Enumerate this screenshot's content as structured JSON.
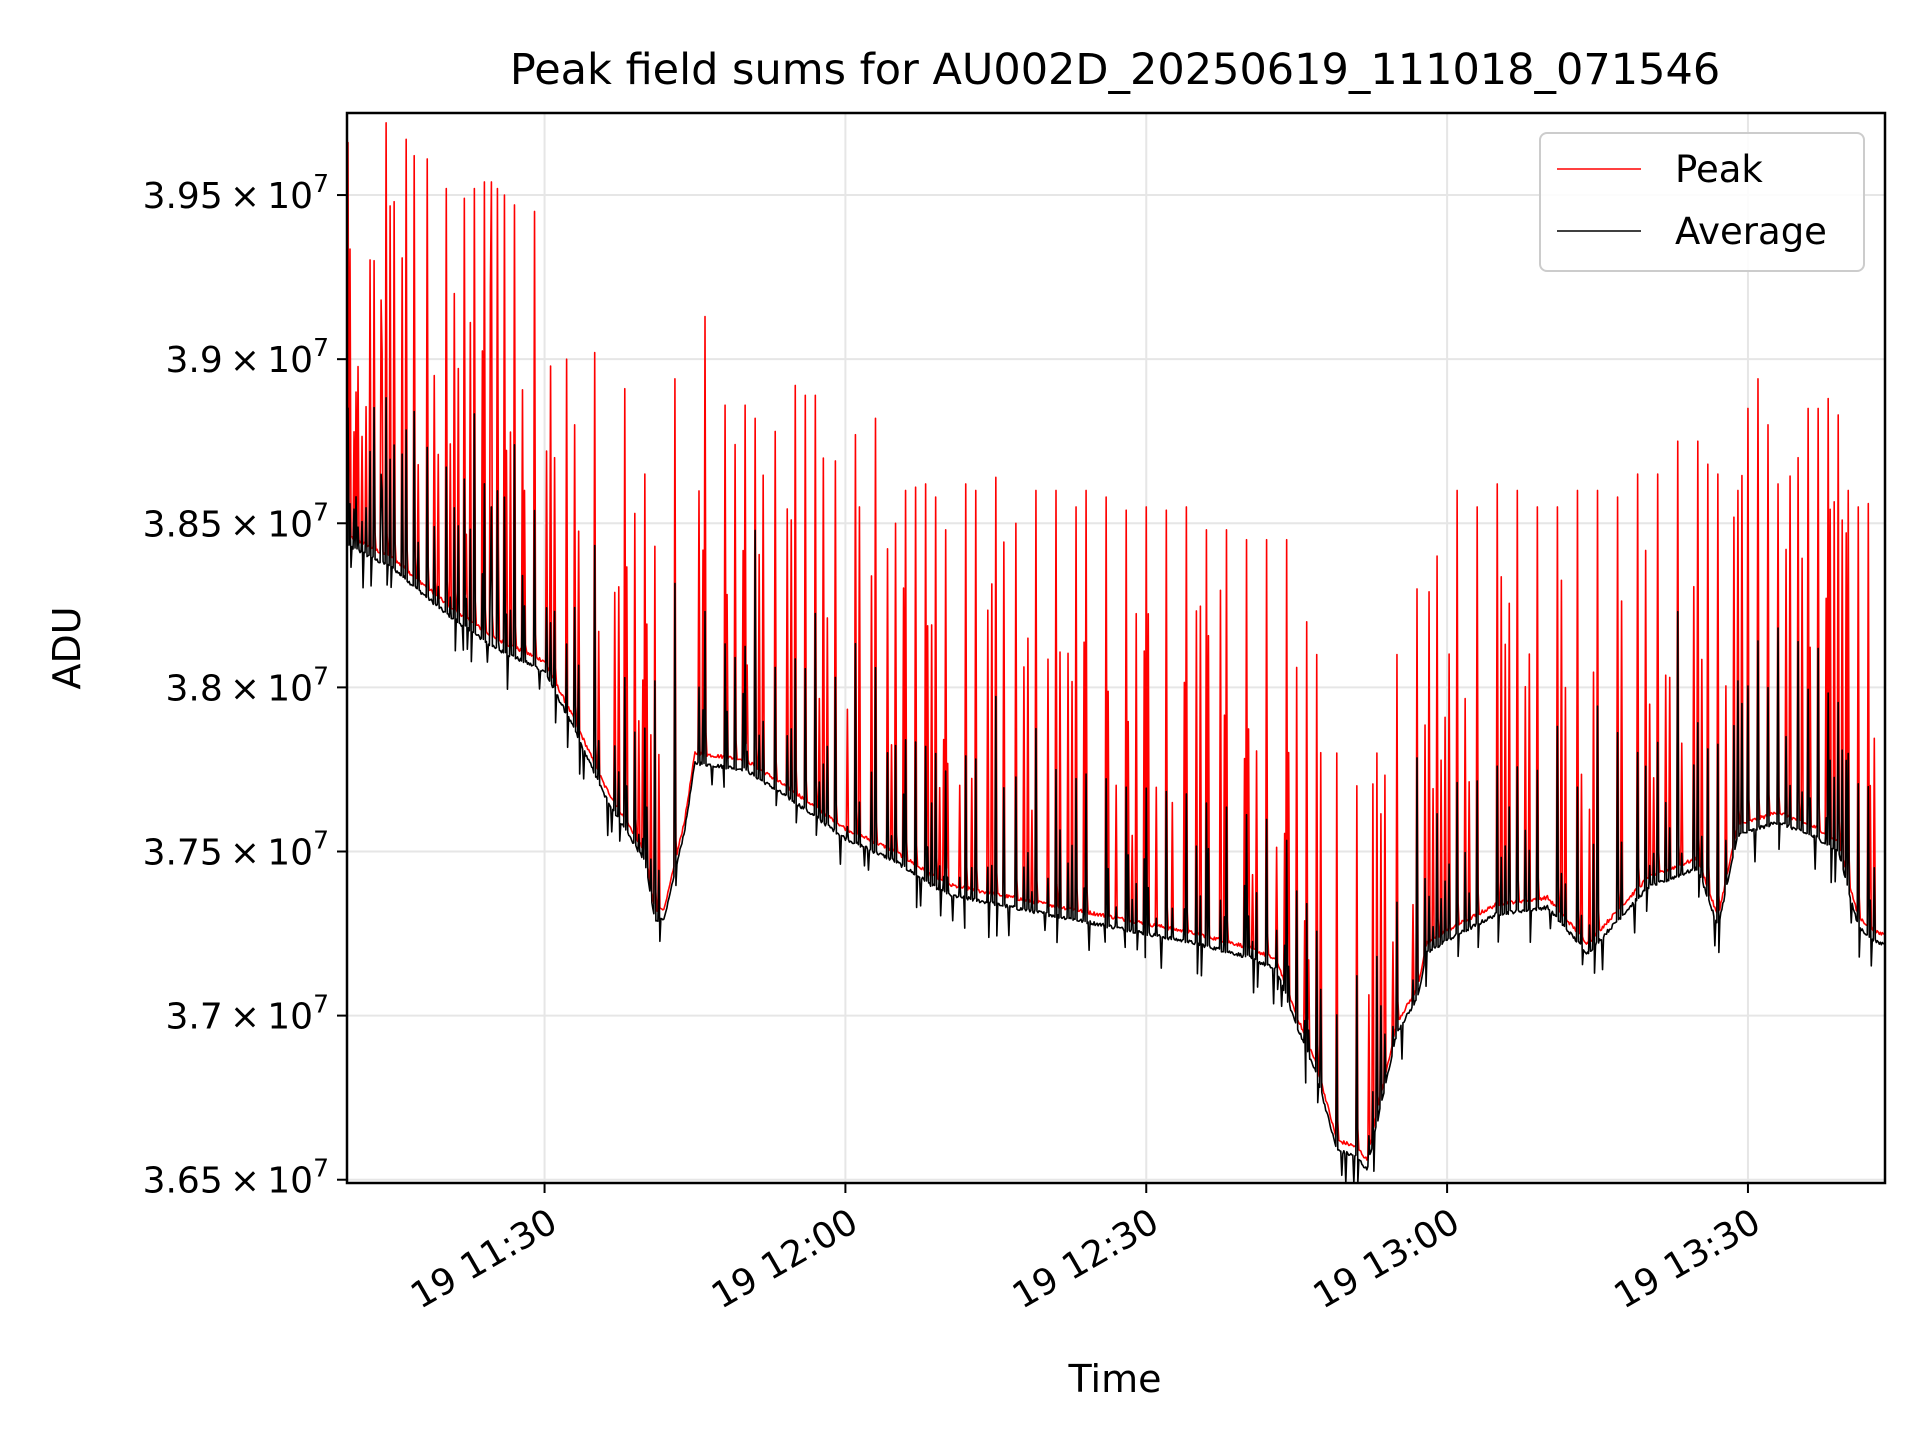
{
  "chart_data": {
    "type": "line",
    "title": "Peak field sums for AU002D_20250619_111018_071546",
    "xlabel": "Time",
    "ylabel": "ADU",
    "xlim_minutes": [
      "11:10:18",
      "13:43:40"
    ],
    "ylim": [
      36490000,
      39750000
    ],
    "grid": true,
    "legend_position": "top-right",
    "x_ticks": [
      "19 11:30",
      "19 12:00",
      "19 12:30",
      "19 13:00",
      "19 13:30"
    ],
    "y_ticks": [
      {
        "mantissa": "3.65",
        "exp": "7",
        "value": 36500000
      },
      {
        "mantissa": "3.7",
        "exp": "7",
        "value": 37000000
      },
      {
        "mantissa": "3.75",
        "exp": "7",
        "value": 37500000
      },
      {
        "mantissa": "3.8",
        "exp": "7",
        "value": 38000000
      },
      {
        "mantissa": "3.85",
        "exp": "7",
        "value": 38500000
      },
      {
        "mantissa": "3.9",
        "exp": "7",
        "value": 39000000
      },
      {
        "mantissa": "3.95",
        "exp": "7",
        "value": 39500000
      }
    ],
    "series": [
      {
        "name": "Peak",
        "color": "#ff0000",
        "baseline": [
          [
            "11:10",
            38470000
          ],
          [
            "11:15",
            38390000
          ],
          [
            "11:20",
            38260000
          ],
          [
            "11:25",
            38150000
          ],
          [
            "11:30",
            38080000
          ],
          [
            "11:33",
            37900000
          ],
          [
            "11:36",
            37700000
          ],
          [
            "11:40",
            37500000
          ],
          [
            "11:41",
            37320000
          ],
          [
            "11:42",
            37330000
          ],
          [
            "11:44",
            37600000
          ],
          [
            "11:45",
            37800000
          ],
          [
            "11:50",
            37780000
          ],
          [
            "11:55",
            37680000
          ],
          [
            "12:00",
            37570000
          ],
          [
            "12:05",
            37500000
          ],
          [
            "12:10",
            37400000
          ],
          [
            "12:15",
            37370000
          ],
          [
            "12:20",
            37340000
          ],
          [
            "12:25",
            37310000
          ],
          [
            "12:30",
            37280000
          ],
          [
            "12:35",
            37250000
          ],
          [
            "12:40",
            37210000
          ],
          [
            "12:43",
            37170000
          ],
          [
            "12:45",
            37000000
          ],
          [
            "12:47",
            36850000
          ],
          [
            "12:49",
            36620000
          ],
          [
            "12:51",
            36600000
          ],
          [
            "12:52",
            36560000
          ],
          [
            "12:53",
            36700000
          ],
          [
            "12:55",
            36980000
          ],
          [
            "12:57",
            37080000
          ],
          [
            "12:58",
            37220000
          ],
          [
            "13:00",
            37260000
          ],
          [
            "13:05",
            37340000
          ],
          [
            "13:10",
            37360000
          ],
          [
            "13:14",
            37220000
          ],
          [
            "13:17",
            37320000
          ],
          [
            "13:20",
            37420000
          ],
          [
            "13:25",
            37480000
          ],
          [
            "13:27",
            37300000
          ],
          [
            "13:29",
            37580000
          ],
          [
            "13:33",
            37620000
          ],
          [
            "13:37",
            37570000
          ],
          [
            "13:39",
            37530000
          ],
          [
            "13:41",
            37300000
          ],
          [
            "13:43",
            37250000
          ]
        ],
        "spikes": [
          [
            "11:10:25",
            39660000
          ],
          [
            "11:11:10",
            38900000
          ],
          [
            "11:13",
            39300000
          ],
          [
            "11:13:40",
            39180000
          ],
          [
            "11:14:10",
            39720000
          ],
          [
            "11:15",
            39480000
          ],
          [
            "11:16:10",
            39670000
          ],
          [
            "11:17",
            39620000
          ],
          [
            "11:18:20",
            39610000
          ],
          [
            "11:19",
            38950000
          ],
          [
            "11:20:10",
            39520000
          ],
          [
            "11:21",
            39200000
          ],
          [
            "11:22",
            39490000
          ],
          [
            "11:23",
            39520000
          ],
          [
            "11:24",
            39540000
          ],
          [
            "11:24:40",
            39540000
          ],
          [
            "11:25:20",
            39520000
          ],
          [
            "11:26",
            39500000
          ],
          [
            "11:27",
            39470000
          ],
          [
            "11:28",
            38600000
          ],
          [
            "11:29",
            39450000
          ],
          [
            "11:31",
            38700000
          ],
          [
            "11:33",
            38800000
          ],
          [
            "11:35",
            39020000
          ],
          [
            "11:38",
            38910000
          ],
          [
            "11:39",
            38530000
          ],
          [
            "11:40",
            38650000
          ],
          [
            "11:41",
            38430000
          ],
          [
            "11:43",
            38940000
          ],
          [
            "11:46",
            39130000
          ],
          [
            "11:48",
            38860000
          ],
          [
            "11:49",
            38740000
          ],
          [
            "11:50",
            38860000
          ],
          [
            "11:51",
            38820000
          ],
          [
            "11:53",
            38780000
          ],
          [
            "11:55",
            38920000
          ],
          [
            "11:56",
            38890000
          ],
          [
            "11:57",
            38890000
          ],
          [
            "11:59",
            38690000
          ],
          [
            "12:01",
            38770000
          ],
          [
            "12:03",
            38820000
          ],
          [
            "12:05",
            38500000
          ],
          [
            "12:06",
            38600000
          ],
          [
            "12:07",
            38610000
          ],
          [
            "12:08",
            38620000
          ],
          [
            "12:09",
            38580000
          ],
          [
            "12:10",
            38480000
          ],
          [
            "12:12",
            38620000
          ],
          [
            "12:13",
            38600000
          ],
          [
            "12:15",
            38640000
          ],
          [
            "12:17",
            38500000
          ],
          [
            "12:19",
            38600000
          ],
          [
            "12:21",
            38600000
          ],
          [
            "12:23",
            38550000
          ],
          [
            "12:24",
            38600000
          ],
          [
            "12:26",
            38580000
          ],
          [
            "12:28",
            38540000
          ],
          [
            "12:30",
            38550000
          ],
          [
            "12:32",
            38540000
          ],
          [
            "12:34",
            38550000
          ],
          [
            "12:36",
            38480000
          ],
          [
            "12:38",
            38480000
          ],
          [
            "12:40",
            38450000
          ],
          [
            "12:42",
            38450000
          ],
          [
            "12:44",
            38450000
          ],
          [
            "12:46",
            38200000
          ],
          [
            "12:47",
            38100000
          ],
          [
            "12:49",
            37800000
          ],
          [
            "12:51",
            37700000
          ],
          [
            "12:53",
            37800000
          ],
          [
            "12:55",
            38100000
          ],
          [
            "12:57",
            38300000
          ],
          [
            "12:59",
            38400000
          ],
          [
            "13:01",
            38600000
          ],
          [
            "13:03",
            38550000
          ],
          [
            "13:05",
            38620000
          ],
          [
            "13:07",
            38600000
          ],
          [
            "13:09",
            38550000
          ],
          [
            "13:11",
            38550000
          ],
          [
            "13:13",
            38600000
          ],
          [
            "13:15",
            38600000
          ],
          [
            "13:17",
            38580000
          ],
          [
            "13:19",
            38650000
          ],
          [
            "13:21",
            38650000
          ],
          [
            "13:23",
            38750000
          ],
          [
            "13:25",
            38750000
          ],
          [
            "13:26",
            38680000
          ],
          [
            "13:27",
            38650000
          ],
          [
            "13:29",
            38600000
          ],
          [
            "13:30",
            38850000
          ],
          [
            "13:31",
            38940000
          ],
          [
            "13:32",
            38800000
          ],
          [
            "13:33",
            38620000
          ],
          [
            "13:35",
            38700000
          ],
          [
            "13:36",
            38850000
          ],
          [
            "13:37",
            38850000
          ],
          [
            "13:38",
            38880000
          ],
          [
            "13:39",
            38830000
          ],
          [
            "13:40",
            38600000
          ],
          [
            "13:41",
            38550000
          ],
          [
            "13:42",
            38560000
          ]
        ]
      },
      {
        "name": "Average",
        "color": "#000000",
        "offset_below_peak": 30000,
        "spike_scale": 0.35
      }
    ]
  }
}
